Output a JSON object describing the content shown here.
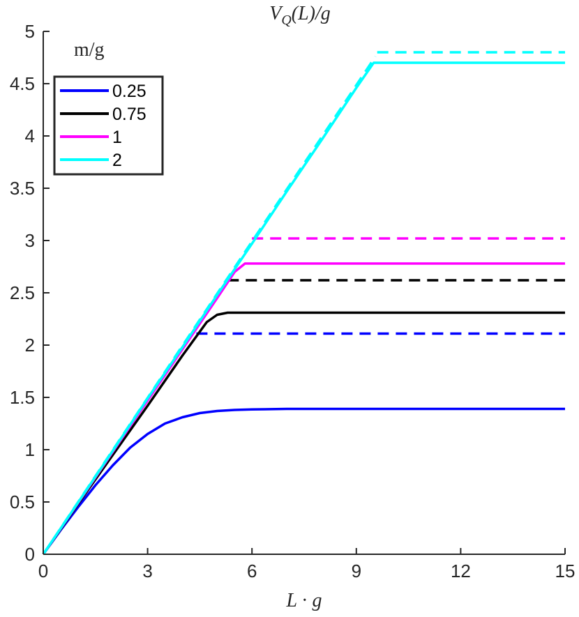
{
  "chart_data": {
    "type": "line",
    "title": "V_Q(L)/g",
    "title_parts": {
      "main": "V",
      "sub": "Q",
      "rest": "(L)/g"
    },
    "xlabel": "L · g",
    "xlabel_parts": {
      "left": "L",
      "dot": "·",
      "right": "g"
    },
    "ylabel": "",
    "xlim": [
      0,
      15
    ],
    "ylim": [
      0,
      5
    ],
    "xticks": [
      0,
      3,
      6,
      9,
      12,
      15
    ],
    "xtick_labels": [
      "0",
      "3",
      "6",
      "9",
      "12",
      "15"
    ],
    "yticks": [
      0,
      0.5,
      1,
      1.5,
      2,
      2.5,
      3,
      3.5,
      4,
      4.5,
      5
    ],
    "ytick_labels": [
      "0",
      "0.5",
      "1",
      "1.5",
      "2",
      "2.5",
      "3",
      "3.5",
      "4",
      "4.5",
      "5"
    ],
    "grid": false,
    "legend_title": "m/g",
    "legend_position": "top-left",
    "series": [
      {
        "name": "0.25",
        "color": "#0000ff",
        "x": [
          0,
          0.5,
          1,
          1.5,
          2,
          2.5,
          3,
          3.5,
          4,
          4.5,
          5,
          5.5,
          6,
          7,
          8,
          10,
          12,
          15
        ],
        "y": [
          0,
          0.23,
          0.45,
          0.66,
          0.85,
          1.02,
          1.15,
          1.25,
          1.31,
          1.35,
          1.37,
          1.38,
          1.385,
          1.39,
          1.39,
          1.39,
          1.39,
          1.39
        ],
        "asymptote": {
          "x_start": 4.4,
          "x_end": 15,
          "y": 2.11
        }
      },
      {
        "name": "0.75",
        "color": "#000000",
        "x": [
          0,
          1,
          2,
          3,
          4,
          4.7,
          5.0,
          5.3,
          6,
          8,
          10,
          15
        ],
        "y": [
          0,
          0.48,
          0.95,
          1.42,
          1.9,
          2.22,
          2.29,
          2.31,
          2.31,
          2.31,
          2.31,
          2.31
        ],
        "asymptote": {
          "x_start": 5.3,
          "x_end": 15,
          "y": 2.62
        }
      },
      {
        "name": "1",
        "color": "#ff00ff",
        "x": [
          0,
          1,
          2,
          3,
          4,
          5,
          5.5,
          5.8,
          6,
          8,
          10,
          15
        ],
        "y": [
          0,
          0.49,
          0.98,
          1.47,
          1.96,
          2.45,
          2.7,
          2.78,
          2.78,
          2.78,
          2.78,
          2.78
        ],
        "asymptote": {
          "x_start": 6.0,
          "x_end": 15,
          "y": 3.02
        }
      },
      {
        "name": "2",
        "color": "#00ffff",
        "x": [
          0,
          1,
          2,
          3,
          4,
          5,
          6,
          7,
          8,
          9,
          9.5,
          10,
          12,
          15
        ],
        "y": [
          0,
          0.495,
          0.99,
          1.49,
          1.98,
          2.48,
          2.97,
          3.47,
          3.96,
          4.46,
          4.7,
          4.7,
          4.7,
          4.7
        ],
        "asymptote": {
          "x_start": 9.6,
          "x_end": 15,
          "y": 4.8
        }
      }
    ],
    "diagonal_dashed": {
      "color": "#00ffff",
      "x": [
        0,
        9.55
      ],
      "y": [
        0,
        4.76
      ]
    }
  }
}
